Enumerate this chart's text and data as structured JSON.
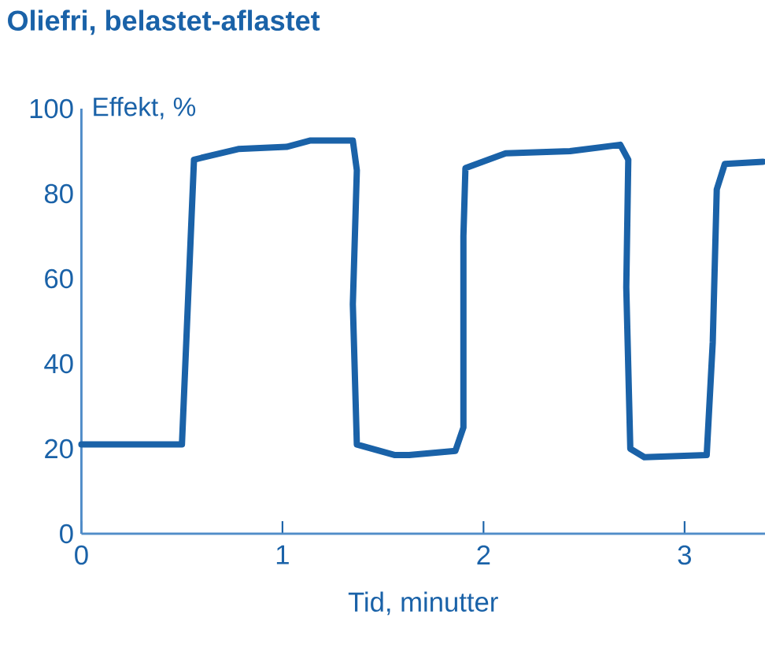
{
  "chart_data": {
    "type": "line",
    "title": "Oliefri, belastet-aflastet",
    "xlabel": "Tid, minutter",
    "ylabel": "Effekt, %",
    "x": [
      0,
      0.5,
      0.56,
      0.78,
      1.02,
      1.14,
      1.35,
      1.37,
      1.35,
      1.37,
      1.56,
      1.63,
      1.86,
      1.9,
      1.9,
      1.91,
      2.11,
      2.43,
      2.68,
      2.72,
      2.71,
      2.73,
      2.8,
      3.11,
      3.14,
      3.16,
      3.2,
      3.39
    ],
    "series": [
      {
        "color": "#1a62a8",
        "values": [
          21,
          21,
          88,
          90.5,
          91,
          92.5,
          92.5,
          85.5,
          54,
          21,
          18.5,
          18.5,
          19.5,
          25,
          70,
          86,
          89.5,
          90,
          91.5,
          88,
          58,
          20,
          18,
          18.5,
          45,
          81,
          87,
          87.5
        ]
      }
    ],
    "xlim": [
      0,
      3.4
    ],
    "ylim": [
      0,
      100
    ],
    "xticks": [
      0,
      1,
      2,
      3
    ],
    "yticks": [
      0,
      20,
      40,
      60,
      80,
      100
    ],
    "grid": false,
    "marker": "none",
    "line_style": "solid"
  }
}
